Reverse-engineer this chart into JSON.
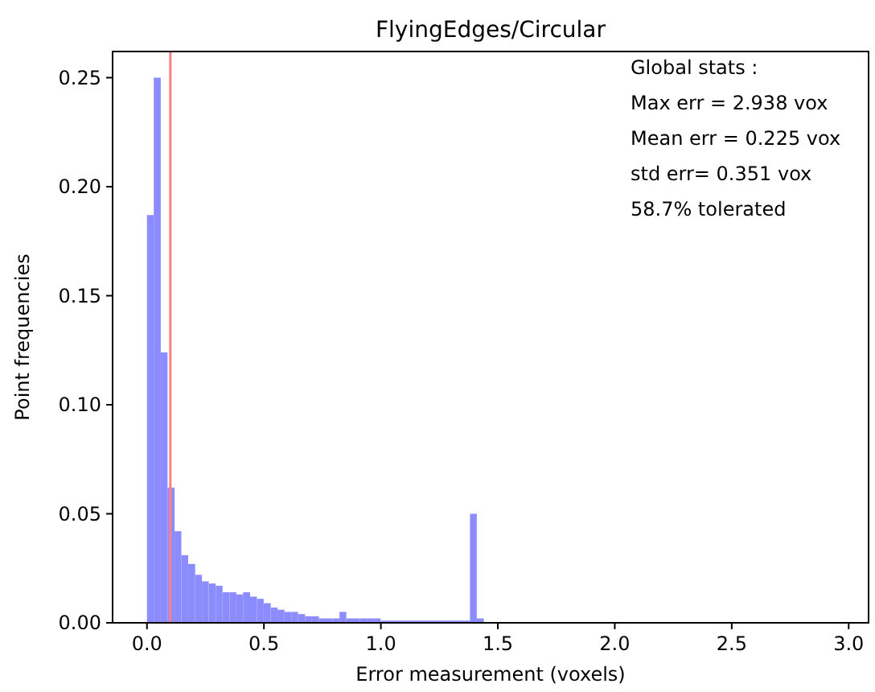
{
  "chart_data": {
    "type": "histogram",
    "title": "FlyingEdges/Circular",
    "xlabel": "Error measurement (voxels)",
    "ylabel": "Point frequencies",
    "bins": [
      0,
      0.029,
      0.059,
      0.088,
      0.118,
      0.147,
      0.176,
      0.206,
      0.235,
      0.264,
      0.294,
      0.323,
      0.353,
      0.382,
      0.411,
      0.441,
      0.47,
      0.499,
      0.529,
      0.558,
      0.588,
      0.617,
      0.646,
      0.676,
      0.705,
      0.735,
      0.764,
      0.793,
      0.823,
      0.852,
      0.881,
      0.911,
      0.94,
      0.97,
      0.999,
      1.028,
      1.058,
      1.087,
      1.116,
      1.146,
      1.175,
      1.205,
      1.234,
      1.263,
      1.293,
      1.322,
      1.351,
      1.381,
      1.41,
      1.44,
      1.469
    ],
    "values": [
      0.187,
      0.25,
      0.124,
      0.062,
      0.042,
      0.031,
      0.027,
      0.022,
      0.019,
      0.018,
      0.017,
      0.014,
      0.014,
      0.013,
      0.014,
      0.012,
      0.011,
      0.009,
      0.007,
      0.006,
      0.005,
      0.005,
      0.004,
      0.003,
      0.003,
      0.002,
      0.002,
      0.002,
      0.005,
      0.002,
      0.002,
      0.002,
      0.002,
      0.002,
      0.001,
      0.001,
      0.001,
      0.001,
      0.001,
      0.001,
      0.001,
      0.001,
      0.001,
      0.001,
      0.001,
      0.001,
      0.001,
      0.05,
      0.002,
      0
    ],
    "color": "#8c8cff",
    "xlim": [
      -0.147,
      3.085
    ],
    "xticks": [
      {
        "value": 0,
        "label": "0.0"
      },
      {
        "value": 0.5,
        "label": "0.5"
      },
      {
        "value": 1,
        "label": "1.0"
      },
      {
        "value": 1.5,
        "label": "1.5"
      },
      {
        "value": 2,
        "label": "2.0"
      },
      {
        "value": 2.5,
        "label": "2.5"
      },
      {
        "value": 3,
        "label": "3.0"
      }
    ],
    "ylim": [
      0,
      0.262
    ],
    "yticks": [
      {
        "value": 0,
        "label": "0.00"
      },
      {
        "value": 0.05,
        "label": "0.05"
      },
      {
        "value": 0.1,
        "label": "0.10"
      },
      {
        "value": 0.15,
        "label": "0.15"
      },
      {
        "value": 0.2,
        "label": "0.20"
      },
      {
        "value": 0.25,
        "label": "0.25"
      }
    ],
    "ref_lines": [
      {
        "axis": "x",
        "value": 0.1,
        "label": null,
        "color": "#ff8080"
      }
    ],
    "annotations": [
      "Global stats :",
      "Max err = 2.938 vox",
      "Mean err = 0.225 vox",
      "std err= 0.351 vox",
      "58.7% tolerated"
    ]
  }
}
